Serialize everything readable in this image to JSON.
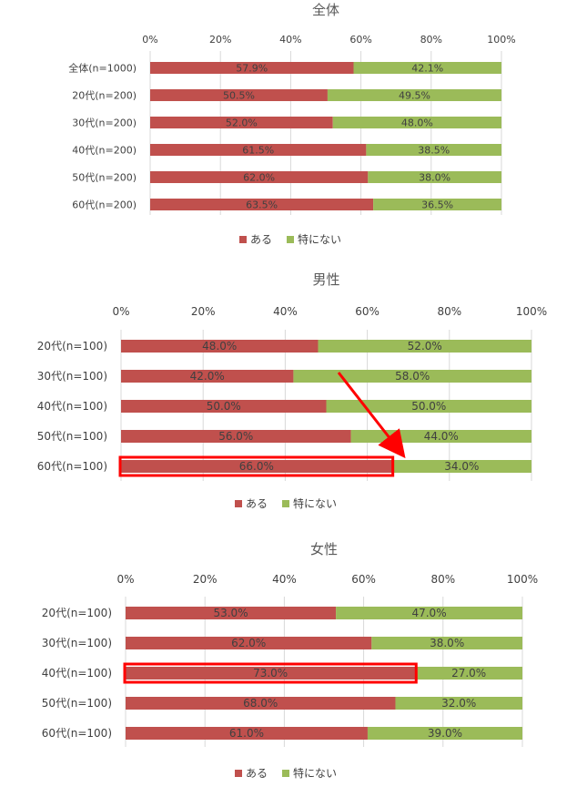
{
  "chart_data": [
    {
      "type": "bar",
      "orientation": "horizontal",
      "stacked": true,
      "title": "全体",
      "xlim": [
        0,
        100
      ],
      "x_ticks": [
        "0%",
        "20%",
        "40%",
        "60%",
        "80%",
        "100%"
      ],
      "categories": [
        "全体(n=1000)",
        "20代(n=200)",
        "30代(n=200)",
        "40代(n=200)",
        "50代(n=200)",
        "60代(n=200)"
      ],
      "series": [
        {
          "name": "ある",
          "color": "#c0504d",
          "values": [
            57.9,
            50.5,
            52.0,
            61.5,
            62.0,
            63.5
          ],
          "labels": [
            "57.9%",
            "50.5%",
            "52.0%",
            "61.5%",
            "62.0%",
            "63.5%"
          ]
        },
        {
          "name": "特にない",
          "color": "#9bbb59",
          "values": [
            42.1,
            49.5,
            48.0,
            38.5,
            38.0,
            36.5
          ],
          "labels": [
            "42.1%",
            "49.5%",
            "48.0%",
            "38.5%",
            "38.0%",
            "36.5%"
          ]
        }
      ],
      "legend": "bottom",
      "gridlines": true,
      "highlight_index": null
    },
    {
      "type": "bar",
      "orientation": "horizontal",
      "stacked": true,
      "title": "男性",
      "xlim": [
        0,
        100
      ],
      "x_ticks": [
        "0%",
        "20%",
        "40%",
        "60%",
        "80%",
        "100%"
      ],
      "categories": [
        "20代(n=100)",
        "30代(n=100)",
        "40代(n=100)",
        "50代(n=100)",
        "60代(n=100)"
      ],
      "series": [
        {
          "name": "ある",
          "color": "#c0504d",
          "values": [
            48.0,
            42.0,
            50.0,
            56.0,
            66.0
          ],
          "labels": [
            "48.0%",
            "42.0%",
            "50.0%",
            "56.0%",
            "66.0%"
          ]
        },
        {
          "name": "特にない",
          "color": "#9bbb59",
          "values": [
            52.0,
            58.0,
            50.0,
            44.0,
            34.0
          ],
          "labels": [
            "52.0%",
            "58.0%",
            "50.0%",
            "44.0%",
            "34.0%"
          ]
        }
      ],
      "legend": "bottom",
      "gridlines": true,
      "highlight_index": 4,
      "arrow": true
    },
    {
      "type": "bar",
      "orientation": "horizontal",
      "stacked": true,
      "title": "女性",
      "xlim": [
        0,
        100
      ],
      "x_ticks": [
        "0%",
        "20%",
        "40%",
        "60%",
        "80%",
        "100%"
      ],
      "categories": [
        "20代(n=100)",
        "30代(n=100)",
        "40代(n=100)",
        "50代(n=100)",
        "60代(n=100)"
      ],
      "series": [
        {
          "name": "ある",
          "color": "#c0504d",
          "values": [
            53.0,
            62.0,
            73.0,
            68.0,
            61.0
          ],
          "labels": [
            "53.0%",
            "62.0%",
            "73.0%",
            "68.0%",
            "61.0%"
          ]
        },
        {
          "name": "特にない",
          "color": "#9bbb59",
          "values": [
            47.0,
            38.0,
            27.0,
            32.0,
            39.0
          ],
          "labels": [
            "47.0%",
            "38.0%",
            "27.0%",
            "32.0%",
            "39.0%"
          ]
        }
      ],
      "legend": "bottom",
      "gridlines": true,
      "highlight_index": 2
    }
  ],
  "colors": {
    "highlight": "#ff0000",
    "grid": "#d9d9d9"
  }
}
